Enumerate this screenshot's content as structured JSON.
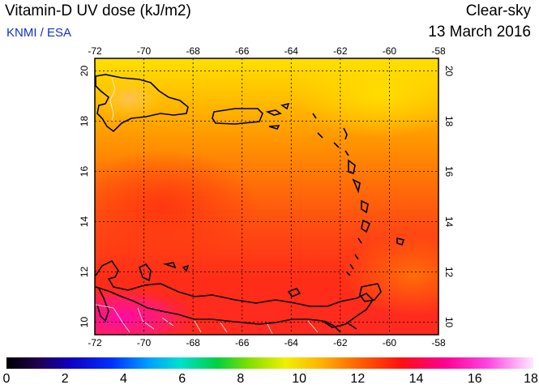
{
  "header": {
    "title": "Vitamin-D UV dose (kJ/m2)",
    "organization": "KNMI / ESA",
    "mode": "Clear-sky",
    "date": "13 March 2016"
  },
  "map": {
    "lon_ticks": [
      "-72",
      "-70",
      "-68",
      "-66",
      "-64",
      "-62",
      "-60",
      "-58"
    ],
    "lat_ticks": [
      "10",
      "12",
      "14",
      "16",
      "18",
      "20"
    ],
    "lon_range": [
      -72,
      -58
    ],
    "lat_range": [
      9.5,
      20.5
    ],
    "grid": true,
    "field_colors": {
      "yellow": "#ffd800",
      "orange": "#ff8a00",
      "red_orange": "#ff5a10",
      "red": "#ff2a18",
      "magenta": "#ff1a9a"
    }
  },
  "colorbar": {
    "labels": [
      "0",
      "2",
      "4",
      "6",
      "8",
      "10",
      "12",
      "14",
      "16",
      "18"
    ],
    "range": [
      0,
      18
    ]
  }
}
